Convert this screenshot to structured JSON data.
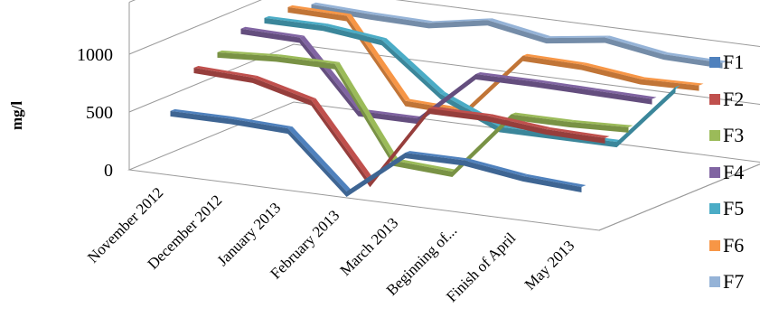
{
  "chart_data": {
    "type": "line",
    "style": "3d-ribbon",
    "title": "",
    "xlabel": "",
    "ylabel": "mg/l",
    "ylim": [
      0,
      1000
    ],
    "yticks": [
      "0",
      "500",
      "1000"
    ],
    "grid": true,
    "legend_position": "right",
    "categories": [
      "November 2012",
      "December 2012",
      "January 2013",
      "February 2013",
      "March 2013",
      "Beginning of...",
      "Finish of April",
      "May 2013"
    ],
    "series": [
      {
        "name": "F1",
        "color": "#4F81BD",
        "values": [
          500,
          500,
          480,
          0,
          400,
          400,
          330,
          300
        ]
      },
      {
        "name": "F2",
        "color": "#C0504D",
        "values": [
          790,
          770,
          640,
          0,
          700,
          700,
          650,
          640
        ]
      },
      {
        "name": "F3",
        "color": "#9BBB59",
        "values": [
          840,
          870,
          870,
          100,
          70,
          630,
          630,
          650
        ]
      },
      {
        "name": "F4",
        "color": "#8064A2",
        "values": [
          960,
          950,
          380,
          380,
          830,
          830,
          820,
          810
        ]
      },
      {
        "name": "F5",
        "color": "#4BACC6",
        "values": [
          970,
          970,
          910,
          510,
          290,
          290,
          290,
          830
        ]
      },
      {
        "name": "F6",
        "color": "#F79646",
        "values": [
          980,
          970,
          300,
          280,
          820,
          810,
          750,
          760
        ]
      },
      {
        "name": "F7",
        "color": "#95B3D7",
        "values": [
          920,
          900,
          890,
          980,
          890,
          960,
          880,
          870
        ]
      }
    ]
  }
}
